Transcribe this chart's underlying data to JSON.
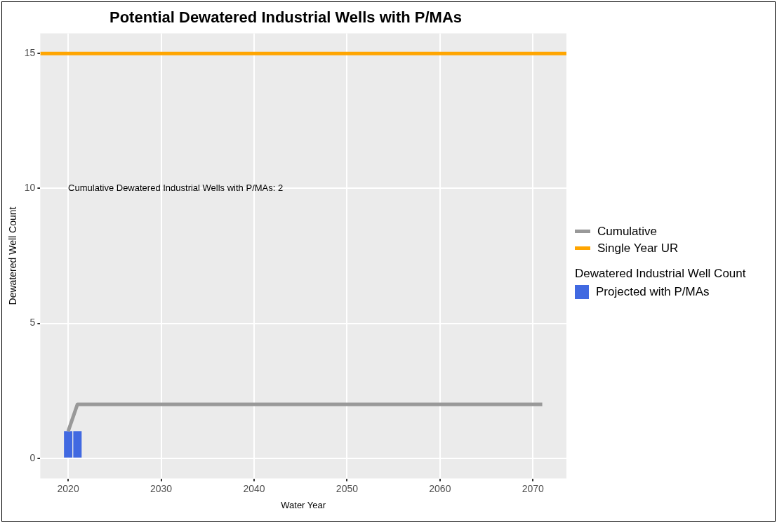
{
  "chart_data": {
    "type": "bar",
    "title": "Potential Dewatered Industrial Wells with P/MAs",
    "xlabel": "Water Year",
    "ylabel": "Dewatered Well Count",
    "legend_title": "Dewatered Industrial Well Count",
    "series": [
      {
        "name": "Projected with P/MAs",
        "color": "#4169e1",
        "x": [
          2020,
          2021
        ],
        "values": [
          1,
          1
        ]
      },
      {
        "name": "Cumulative",
        "type": "line",
        "color": "#999999",
        "x": [
          2020,
          2021,
          2071
        ],
        "values": [
          1,
          2,
          2
        ]
      }
    ],
    "ref_lines": [
      {
        "axis": "y",
        "value": 15,
        "label": "Single Year UR",
        "color": "#ffa500"
      }
    ],
    "annotations": [
      "Cumulative Dewatered Industrial Wells with P/MAs: 2"
    ],
    "xlim": [
      2017,
      2073.6
    ],
    "xticks": [
      2020,
      2030,
      2040,
      2050,
      2060,
      2070
    ],
    "ylim": [
      -0.75,
      15.75
    ],
    "yticks": [
      0,
      5,
      10,
      15
    ],
    "grid": true,
    "legend": "right",
    "marker": "none"
  }
}
